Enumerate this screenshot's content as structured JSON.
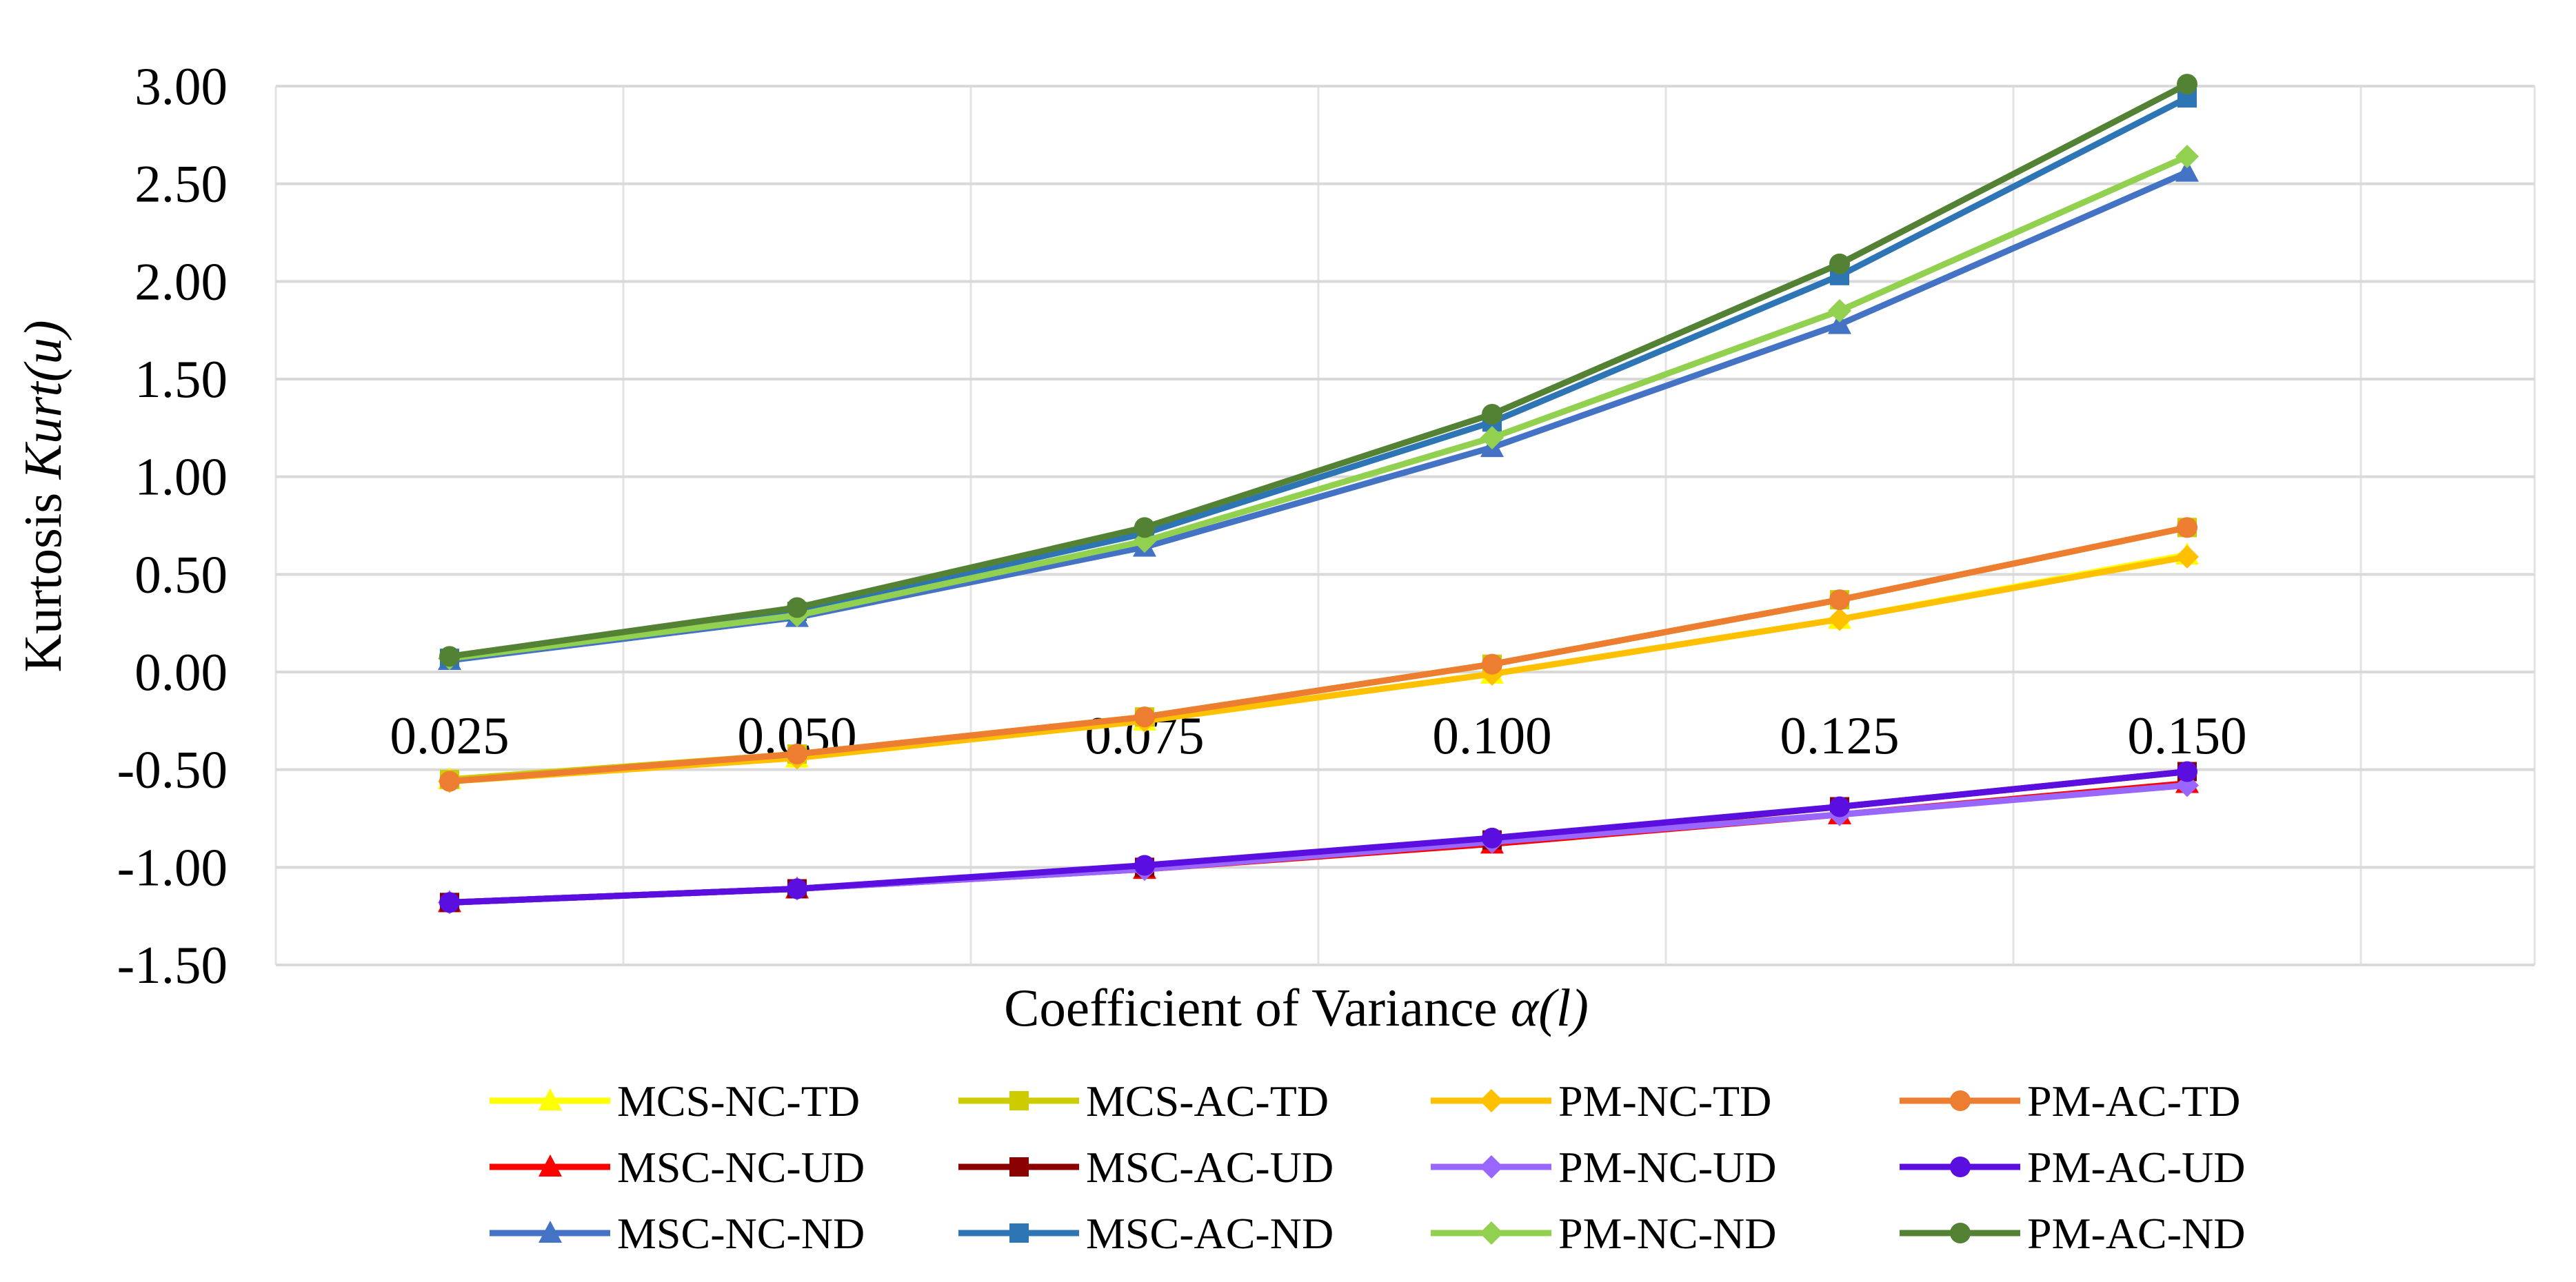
{
  "chart_data": {
    "type": "line",
    "title": "",
    "xlabel": "Coefficient of Variance",
    "xlabel_italic": "α(l)",
    "ylabel": "Kurtosis",
    "ylabel_italic": "Kurt(u)",
    "categories": [
      "0.025",
      "0.050",
      "0.075",
      "0.100",
      "0.125",
      "0.150"
    ],
    "yticks": [
      "3.00",
      "2.50",
      "2.00",
      "1.50",
      "1.00",
      "0.50",
      "0.00",
      "-0.50",
      "-1.00",
      "-1.50"
    ],
    "ylim": [
      -1.5,
      3.0
    ],
    "grid": true,
    "legend_position": "bottom",
    "series": [
      {
        "name": "MCS-NC-TD",
        "color": "#FFFF00",
        "marker": "triangle",
        "values": [
          -0.55,
          -0.44,
          -0.25,
          -0.01,
          0.27,
          0.6
        ]
      },
      {
        "name": "MCS-AC-TD",
        "color": "#CCCC00",
        "marker": "square",
        "values": [
          -0.55,
          -0.42,
          -0.23,
          0.04,
          0.37,
          0.74
        ]
      },
      {
        "name": "PM-NC-TD",
        "color": "#FFC000",
        "marker": "diamond",
        "values": [
          -0.56,
          -0.44,
          -0.25,
          -0.01,
          0.27,
          0.59
        ]
      },
      {
        "name": "PM-AC-TD",
        "color": "#ED7D31",
        "marker": "circle",
        "values": [
          -0.56,
          -0.42,
          -0.23,
          0.04,
          0.37,
          0.74
        ]
      },
      {
        "name": "MSC-NC-UD",
        "color": "#FF0000",
        "marker": "triangle",
        "values": [
          -1.18,
          -1.11,
          -1.01,
          -0.88,
          -0.73,
          -0.57
        ]
      },
      {
        "name": "MSC-AC-UD",
        "color": "#8B0000",
        "marker": "square",
        "values": [
          -1.18,
          -1.11,
          -1.0,
          -0.86,
          -0.69,
          -0.51
        ]
      },
      {
        "name": "PM-NC-UD",
        "color": "#9966FF",
        "marker": "diamond",
        "values": [
          -1.18,
          -1.11,
          -1.01,
          -0.87,
          -0.73,
          -0.58
        ]
      },
      {
        "name": "PM-AC-UD",
        "color": "#5B0EE0",
        "marker": "circle",
        "values": [
          -1.18,
          -1.11,
          -0.99,
          -0.85,
          -0.69,
          -0.51
        ]
      },
      {
        "name": "MSC-NC-ND",
        "color": "#4472C4",
        "marker": "triangle",
        "values": [
          0.06,
          0.28,
          0.64,
          1.15,
          1.78,
          2.56
        ]
      },
      {
        "name": "MSC-AC-ND",
        "color": "#2E75B6",
        "marker": "square",
        "values": [
          0.07,
          0.31,
          0.71,
          1.28,
          2.03,
          2.94
        ]
      },
      {
        "name": "PM-NC-ND",
        "color": "#92D050",
        "marker": "diamond",
        "values": [
          0.07,
          0.29,
          0.67,
          1.2,
          1.85,
          2.64
        ]
      },
      {
        "name": "PM-AC-ND",
        "color": "#548235",
        "marker": "circle",
        "values": [
          0.08,
          0.33,
          0.74,
          1.32,
          2.09,
          3.01
        ]
      }
    ]
  }
}
